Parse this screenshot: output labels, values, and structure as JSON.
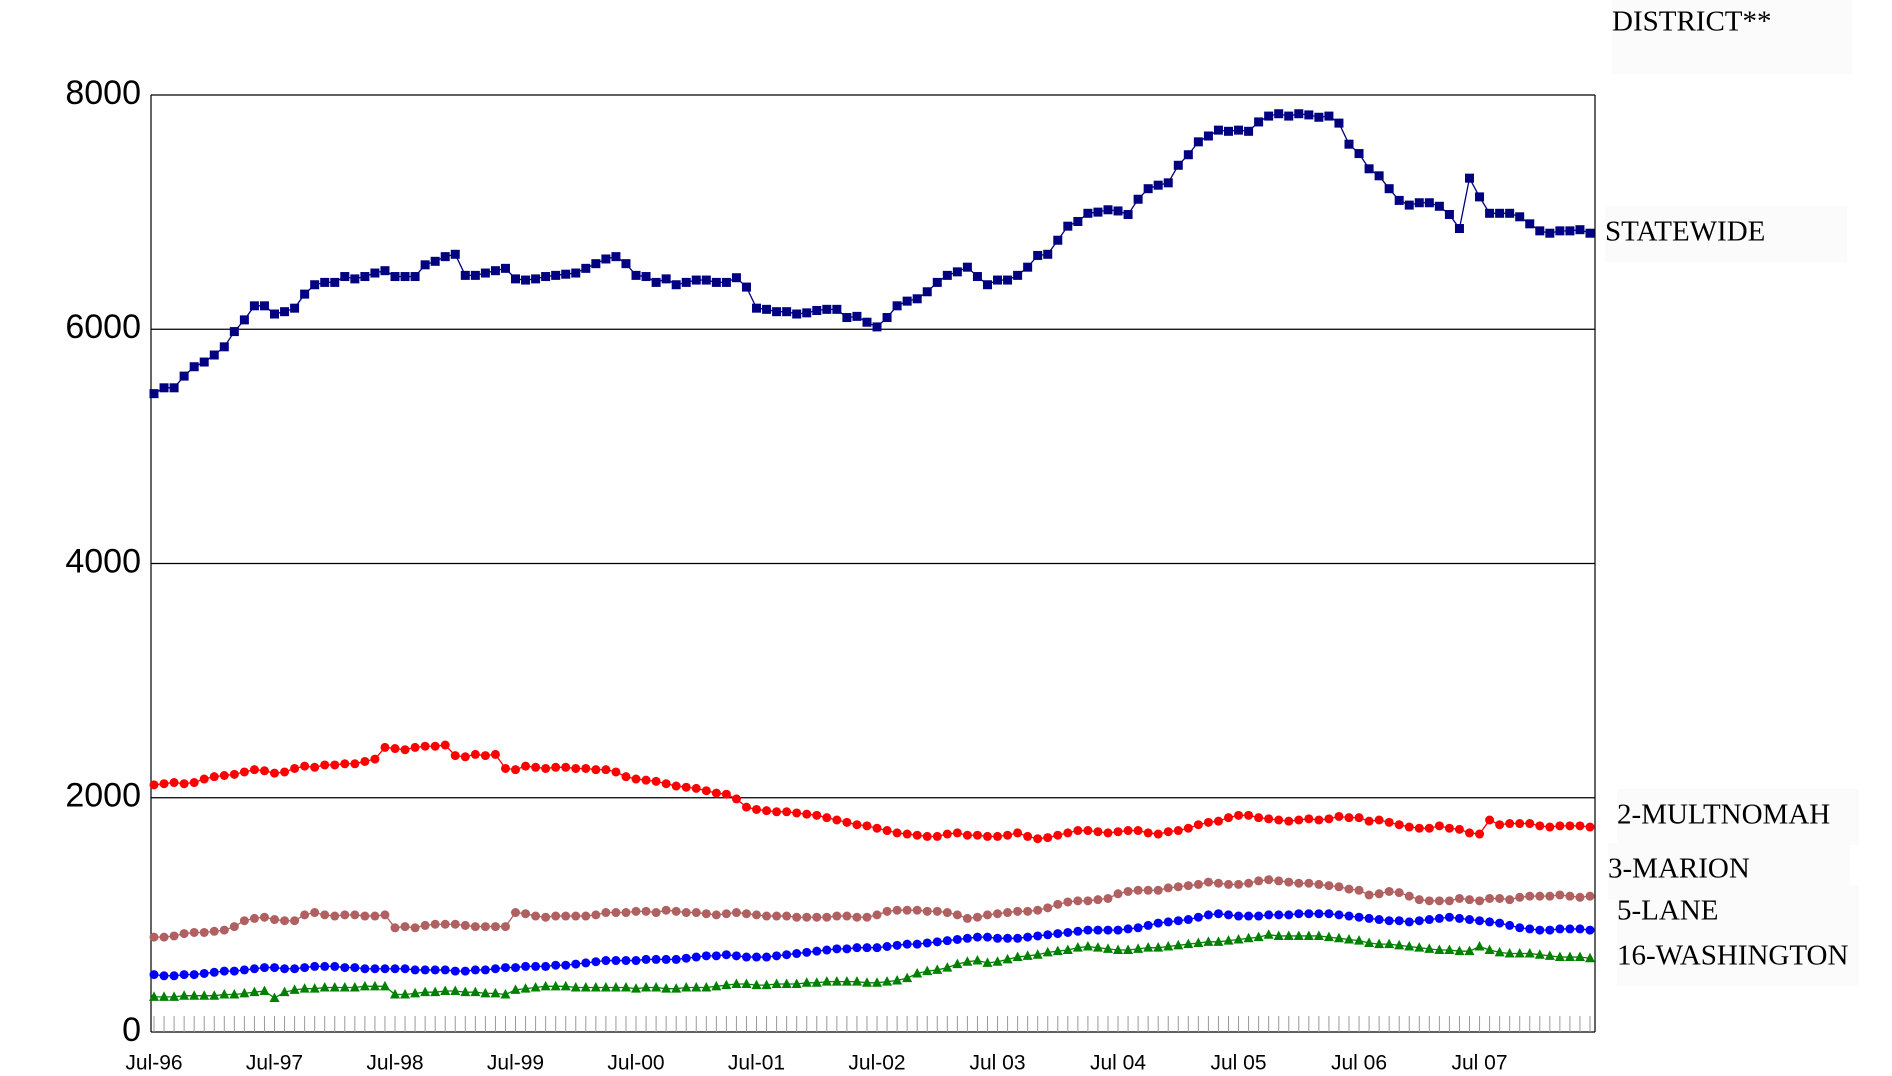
{
  "chart_data": {
    "type": "line",
    "legend_title": "DISTRICT**",
    "categories": [
      "Jul-96",
      null,
      null,
      null,
      null,
      null,
      null,
      null,
      null,
      null,
      null,
      null,
      "Jul-97",
      null,
      null,
      null,
      null,
      null,
      null,
      null,
      null,
      null,
      null,
      null,
      "Jul-98",
      null,
      null,
      null,
      null,
      null,
      null,
      null,
      null,
      null,
      null,
      null,
      "Jul-99",
      null,
      null,
      null,
      null,
      null,
      null,
      null,
      null,
      null,
      null,
      null,
      "Jul-00",
      null,
      null,
      null,
      null,
      null,
      null,
      null,
      null,
      null,
      null,
      null,
      "Jul-01",
      null,
      null,
      null,
      null,
      null,
      null,
      null,
      null,
      null,
      null,
      null,
      "Jul-02",
      null,
      null,
      null,
      null,
      null,
      null,
      null,
      null,
      null,
      null,
      null,
      "Jul 03",
      null,
      null,
      null,
      null,
      null,
      null,
      null,
      null,
      null,
      null,
      null,
      "Jul 04",
      null,
      null,
      null,
      null,
      null,
      null,
      null,
      null,
      null,
      null,
      null,
      "Jul 05",
      null,
      null,
      null,
      null,
      null,
      null,
      null,
      null,
      null,
      null,
      null,
      "Jul 06",
      null,
      null,
      null,
      null,
      null,
      null,
      null,
      null,
      null,
      null,
      null,
      "Jul 07",
      null,
      null,
      null,
      null,
      null,
      null,
      null,
      null,
      null,
      null,
      null
    ],
    "series": [
      {
        "name": "STATEWIDE",
        "color": "#000080",
        "marker": "square",
        "values": [
          5450,
          5500,
          5500,
          5600,
          5680,
          5720,
          5780,
          5850,
          5980,
          6080,
          6200,
          6200,
          6130,
          6150,
          6180,
          6300,
          6380,
          6400,
          6400,
          6450,
          6430,
          6450,
          6480,
          6500,
          6450,
          6450,
          6450,
          6550,
          6580,
          6620,
          6640,
          6460,
          6460,
          6480,
          6500,
          6520,
          6430,
          6420,
          6430,
          6450,
          6460,
          6470,
          6480,
          6520,
          6560,
          6600,
          6620,
          6560,
          6460,
          6450,
          6400,
          6430,
          6380,
          6400,
          6420,
          6420,
          6400,
          6400,
          6440,
          6360,
          6180,
          6170,
          6150,
          6150,
          6130,
          6140,
          6160,
          6170,
          6170,
          6100,
          6110,
          6060,
          6020,
          6100,
          6200,
          6240,
          6260,
          6320,
          6400,
          6460,
          6490,
          6530,
          6450,
          6380,
          6420,
          6420,
          6460,
          6530,
          6630,
          6640,
          6760,
          6880,
          6920,
          6990,
          7000,
          7020,
          7010,
          6980,
          7110,
          7200,
          7230,
          7250,
          7400,
          7490,
          7600,
          7650,
          7700,
          7690,
          7700,
          7690,
          7770,
          7820,
          7840,
          7820,
          7840,
          7830,
          7810,
          7820,
          7760,
          7580,
          7500,
          7370,
          7310,
          7200,
          7100,
          7060,
          7080,
          7080,
          7050,
          6980,
          6860,
          7290,
          7130,
          6990,
          6990,
          6990,
          6960,
          6900,
          6840,
          6820,
          6840,
          6840,
          6850,
          6820
        ]
      },
      {
        "name": "2-MULTNOMAH",
        "color": "#ff0000",
        "marker": "circle",
        "values": [
          2110,
          2120,
          2130,
          2120,
          2130,
          2160,
          2180,
          2190,
          2200,
          2220,
          2240,
          2230,
          2210,
          2220,
          2250,
          2270,
          2260,
          2280,
          2280,
          2290,
          2290,
          2310,
          2330,
          2430,
          2420,
          2410,
          2430,
          2440,
          2440,
          2450,
          2360,
          2350,
          2370,
          2360,
          2370,
          2250,
          2240,
          2270,
          2260,
          2250,
          2260,
          2260,
          2250,
          2250,
          2240,
          2240,
          2220,
          2180,
          2160,
          2150,
          2140,
          2120,
          2100,
          2090,
          2080,
          2060,
          2040,
          2030,
          1990,
          1920,
          1900,
          1890,
          1880,
          1880,
          1870,
          1860,
          1850,
          1830,
          1810,
          1790,
          1770,
          1760,
          1740,
          1720,
          1700,
          1690,
          1680,
          1670,
          1670,
          1690,
          1700,
          1680,
          1680,
          1670,
          1670,
          1680,
          1700,
          1670,
          1650,
          1660,
          1680,
          1700,
          1720,
          1720,
          1710,
          1700,
          1710,
          1720,
          1720,
          1700,
          1690,
          1710,
          1720,
          1740,
          1770,
          1790,
          1800,
          1830,
          1850,
          1850,
          1830,
          1820,
          1810,
          1800,
          1810,
          1820,
          1810,
          1820,
          1840,
          1830,
          1830,
          1800,
          1810,
          1790,
          1770,
          1750,
          1740,
          1740,
          1760,
          1740,
          1730,
          1700,
          1690,
          1810,
          1770,
          1780,
          1780,
          1780,
          1760,
          1750,
          1760,
          1760,
          1760,
          1750
        ]
      },
      {
        "name": "3-MARION",
        "color": "#b06060",
        "marker": "circle",
        "values": [
          810,
          810,
          820,
          840,
          850,
          850,
          860,
          870,
          900,
          950,
          970,
          980,
          960,
          950,
          950,
          1000,
          1020,
          1000,
          990,
          1000,
          1000,
          990,
          990,
          1000,
          890,
          900,
          890,
          910,
          920,
          920,
          920,
          910,
          900,
          900,
          900,
          900,
          1020,
          1010,
          990,
          980,
          990,
          990,
          990,
          990,
          1000,
          1020,
          1020,
          1020,
          1030,
          1030,
          1020,
          1040,
          1030,
          1020,
          1020,
          1010,
          1000,
          1010,
          1020,
          1010,
          1000,
          990,
          990,
          990,
          980,
          980,
          980,
          980,
          990,
          990,
          980,
          980,
          1000,
          1030,
          1040,
          1040,
          1040,
          1030,
          1030,
          1020,
          1000,
          970,
          980,
          1000,
          1010,
          1020,
          1030,
          1030,
          1040,
          1060,
          1090,
          1110,
          1120,
          1120,
          1130,
          1140,
          1180,
          1200,
          1210,
          1210,
          1210,
          1230,
          1240,
          1250,
          1260,
          1280,
          1270,
          1260,
          1260,
          1270,
          1290,
          1300,
          1290,
          1280,
          1270,
          1270,
          1260,
          1250,
          1240,
          1220,
          1210,
          1170,
          1180,
          1200,
          1190,
          1160,
          1130,
          1120,
          1120,
          1120,
          1140,
          1130,
          1120,
          1140,
          1140,
          1130,
          1150,
          1160,
          1160,
          1160,
          1170,
          1160,
          1150,
          1160
        ]
      },
      {
        "name": "5-LANE",
        "color": "#0000ff",
        "marker": "circle",
        "values": [
          490,
          480,
          480,
          490,
          490,
          500,
          510,
          520,
          520,
          530,
          540,
          550,
          550,
          540,
          540,
          550,
          560,
          560,
          560,
          550,
          550,
          540,
          540,
          540,
          540,
          540,
          530,
          530,
          530,
          530,
          520,
          520,
          530,
          530,
          540,
          550,
          550,
          560,
          560,
          560,
          570,
          570,
          580,
          590,
          600,
          610,
          610,
          610,
          610,
          620,
          620,
          620,
          620,
          630,
          640,
          650,
          650,
          660,
          650,
          640,
          640,
          640,
          650,
          660,
          670,
          680,
          690,
          700,
          710,
          710,
          720,
          720,
          720,
          730,
          740,
          750,
          750,
          760,
          770,
          780,
          790,
          800,
          810,
          810,
          800,
          800,
          800,
          810,
          820,
          830,
          840,
          850,
          860,
          870,
          870,
          870,
          870,
          880,
          890,
          910,
          930,
          940,
          950,
          960,
          980,
          1000,
          1010,
          1000,
          990,
          990,
          990,
          1000,
          1000,
          1000,
          1010,
          1010,
          1010,
          1010,
          1000,
          990,
          980,
          970,
          960,
          950,
          950,
          940,
          950,
          960,
          970,
          980,
          970,
          960,
          950,
          940,
          930,
          910,
          890,
          880,
          870,
          870,
          880,
          880,
          880,
          870
        ]
      },
      {
        "name": "16-WASHINGTON",
        "color": "#008000",
        "marker": "triangle",
        "values": [
          300,
          300,
          300,
          310,
          310,
          310,
          310,
          320,
          320,
          330,
          340,
          350,
          290,
          340,
          360,
          370,
          370,
          380,
          380,
          380,
          380,
          390,
          390,
          390,
          320,
          320,
          330,
          340,
          340,
          350,
          350,
          340,
          340,
          330,
          330,
          320,
          360,
          370,
          380,
          390,
          390,
          390,
          380,
          380,
          380,
          380,
          380,
          380,
          370,
          380,
          380,
          370,
          370,
          380,
          380,
          380,
          390,
          400,
          410,
          410,
          400,
          400,
          410,
          410,
          410,
          420,
          420,
          430,
          430,
          430,
          430,
          420,
          420,
          430,
          440,
          460,
          500,
          520,
          530,
          550,
          580,
          600,
          610,
          590,
          600,
          620,
          640,
          650,
          660,
          680,
          690,
          700,
          720,
          730,
          720,
          710,
          700,
          700,
          710,
          720,
          720,
          730,
          740,
          750,
          760,
          770,
          770,
          780,
          790,
          800,
          810,
          830,
          820,
          820,
          820,
          820,
          820,
          810,
          800,
          790,
          780,
          760,
          750,
          750,
          740,
          730,
          720,
          710,
          700,
          700,
          690,
          690,
          730,
          700,
          680,
          670,
          670,
          670,
          660,
          650,
          640,
          640,
          640,
          630
        ]
      }
    ],
    "ylim": [
      0,
      8000
    ],
    "yticks": [
      0,
      2000,
      4000,
      6000,
      8000
    ],
    "grid": true
  }
}
